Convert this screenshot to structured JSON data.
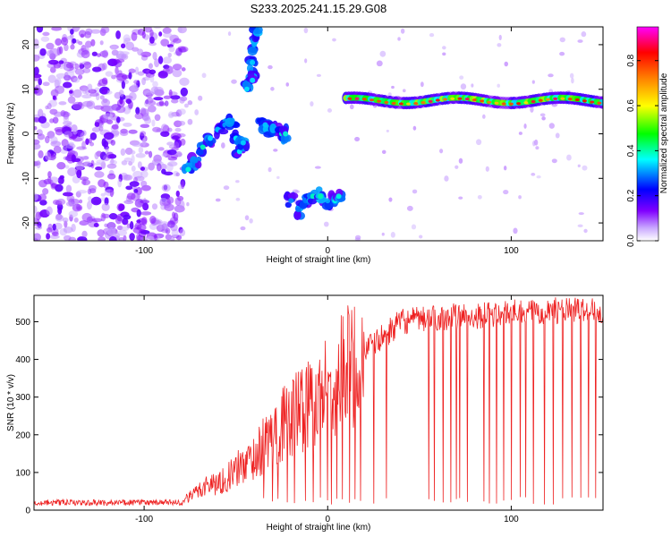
{
  "title": "S233.2025.241.15.29.G08",
  "chart_data": [
    {
      "type": "heatmap",
      "title": "S233.2025.241.15.29.G08",
      "xlabel": "Height of straight line (km)",
      "ylabel": "Frequency (Hz)",
      "xlim": [
        -160,
        150
      ],
      "ylim": [
        -24,
        24
      ],
      "xticks": [
        -100,
        0,
        100
      ],
      "yticks": [
        -20,
        -10,
        0,
        10,
        20
      ],
      "colorbar": {
        "label": "Normalized spectral amplitude",
        "range": [
          0.0,
          0.95
        ],
        "ticks": [
          "0.0",
          "0.2",
          "0.4",
          "0.6",
          "0.8"
        ],
        "colors": [
          "#ffffff",
          "#8000ff",
          "#0000ff",
          "#00ffff",
          "#00ff00",
          "#ffff00",
          "#ff8000",
          "#ff0000",
          "#ff00ff"
        ]
      },
      "features": [
        {
          "name": "noise region",
          "x_range": [
            -160,
            -78
          ],
          "freq_range": [
            -24,
            24
          ],
          "amplitude": 0.15
        },
        {
          "name": "descending fragments",
          "x_range": [
            -78,
            -45
          ],
          "freq_range": [
            -10,
            4
          ],
          "amplitude": 0.3
        },
        {
          "name": "spike",
          "x_range": [
            -45,
            -37
          ],
          "freq_range": [
            10,
            24
          ],
          "amplitude": 0.3
        },
        {
          "name": "cluster near 0 Hz",
          "x_range": [
            -38,
            -20
          ],
          "freq_range": [
            -2,
            4
          ],
          "amplitude": 0.3
        },
        {
          "name": "cluster near -15 Hz",
          "x_range": [
            -22,
            8
          ],
          "freq_range": [
            -20,
            -12
          ],
          "amplitude": 0.3
        },
        {
          "name": "steady tone",
          "x_range": [
            10,
            150
          ],
          "freq_range": [
            6,
            9
          ],
          "amplitude": 0.8
        }
      ]
    },
    {
      "type": "line",
      "xlabel": "Height of straight line (km)",
      "ylabel": "SNR (10 * v/v)",
      "xlim": [
        -160,
        150
      ],
      "ylim": [
        0,
        570
      ],
      "xticks": [
        -100,
        0,
        100
      ],
      "yticks": [
        0,
        100,
        200,
        300,
        400,
        500
      ],
      "color": "#ee2222",
      "x": [
        -160,
        -140,
        -120,
        -100,
        -90,
        -80,
        -75,
        -70,
        -65,
        -60,
        -55,
        -50,
        -45,
        -40,
        -35,
        -30,
        -25,
        -20,
        -15,
        -10,
        -5,
        0,
        5,
        10,
        15,
        20,
        25,
        30,
        35,
        40,
        50,
        60,
        70,
        80,
        90,
        100,
        110,
        120,
        130,
        140,
        150
      ],
      "y": [
        20,
        20,
        20,
        20,
        20,
        22,
        35,
        55,
        70,
        70,
        85,
        105,
        125,
        140,
        170,
        200,
        230,
        250,
        270,
        290,
        315,
        340,
        360,
        380,
        400,
        425,
        440,
        460,
        480,
        500,
        505,
        510,
        515,
        515,
        520,
        525,
        525,
        530,
        530,
        535,
        530
      ],
      "dropouts_x": [
        -35,
        -30,
        -27,
        -22,
        -18,
        -12,
        -8,
        -4,
        0,
        2,
        5,
        8,
        12,
        15,
        18,
        25,
        32,
        55,
        58,
        63,
        67,
        70,
        72,
        76,
        85,
        88,
        92,
        96,
        100,
        105,
        108,
        112,
        118,
        123,
        128,
        133,
        138,
        142,
        146
      ]
    }
  ]
}
